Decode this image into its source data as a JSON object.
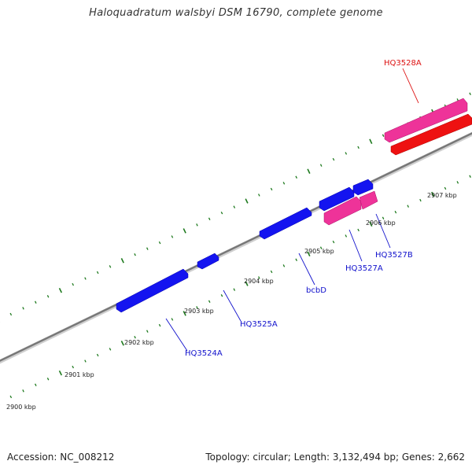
{
  "title": "Haloquadratum walsbyi DSM 16790, complete genome",
  "footer": {
    "accession": "Accession: NC_008212",
    "summary": "Topology: circular; Length: 3,132,494 bp; Genes: 2,662"
  },
  "colors": {
    "axis": "#888888",
    "tick": "#1e7a1e",
    "blue_gene": "#1010ee",
    "pink_gene": "#ee3399",
    "red_gene": "#ee1111",
    "blue_label": "#1010cc",
    "red_label": "#dd1111"
  },
  "scale_labels": [
    "2900 kbp",
    "2901 kbp",
    "2902 kbp",
    "2903 kbp",
    "2904 kbp",
    "2905 kbp",
    "2906 kbp",
    "2907 kbp"
  ],
  "gene_labels": [
    {
      "id": "hq3524a",
      "text": "HQ3524A",
      "color": "blue"
    },
    {
      "id": "hq3525a",
      "text": "HQ3525A",
      "color": "blue"
    },
    {
      "id": "bcbd",
      "text": "bcbD",
      "color": "blue"
    },
    {
      "id": "hq3527a",
      "text": "HQ3527A",
      "color": "blue"
    },
    {
      "id": "hq3527b",
      "text": "HQ3527B",
      "color": "blue"
    },
    {
      "id": "hq3528a",
      "text": "HQ3528A",
      "color": "red"
    }
  ]
}
